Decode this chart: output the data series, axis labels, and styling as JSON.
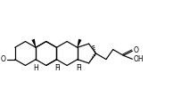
{
  "bg_color": "#ffffff",
  "line_color": "#000000",
  "lw": 0.85,
  "fs": 5.5,
  "figsize": [
    2.13,
    1.19
  ],
  "dpi": 100,
  "xlim": [
    0,
    213
  ],
  "ylim": [
    0,
    119
  ]
}
